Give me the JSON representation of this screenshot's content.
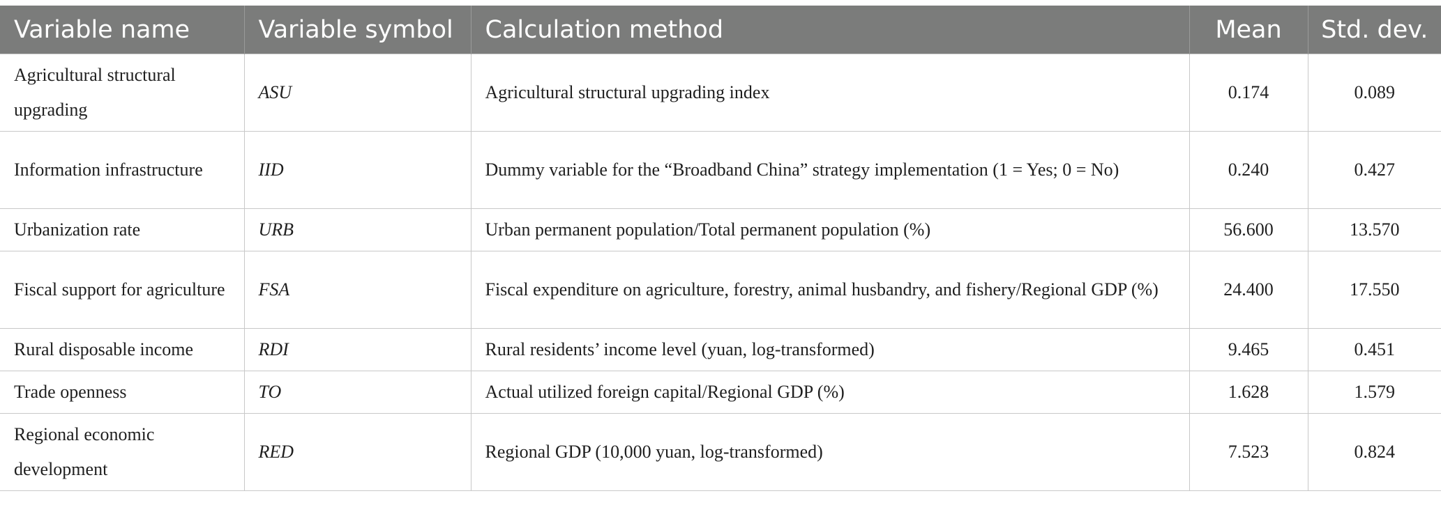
{
  "table": {
    "headers": {
      "name": "Variable name",
      "symbol": "Variable symbol",
      "method": "Calculation method",
      "mean": "Mean",
      "sd": "Std. dev."
    },
    "rows": [
      {
        "name": "Agricultural structural upgrading",
        "symbol": "ASU",
        "method": "Agricultural structural upgrading index",
        "mean": "0.174",
        "sd": "0.089"
      },
      {
        "name": "Information infrastructure",
        "symbol": "IID",
        "method": "Dummy variable for the “Broadband China” strategy implementation (1 = Yes; 0 = No)",
        "mean": "0.240",
        "sd": "0.427"
      },
      {
        "name": "Urbanization rate",
        "symbol": "URB",
        "method": "Urban permanent population/Total permanent population (%)",
        "mean": "56.600",
        "sd": "13.570"
      },
      {
        "name": "Fiscal support for agriculture",
        "symbol": "FSA",
        "method": "Fiscal expenditure on agriculture, forestry, animal husbandry, and fishery/Regional GDP (%)",
        "mean": "24.400",
        "sd": "17.550"
      },
      {
        "name": "Rural disposable income",
        "symbol": "RDI",
        "method": "Rural residents’ income level (yuan, log-transformed)",
        "mean": "9.465",
        "sd": "0.451"
      },
      {
        "name": "Trade openness",
        "symbol": "TO",
        "method": "Actual utilized foreign capital/Regional GDP (%)",
        "mean": "1.628",
        "sd": "1.579"
      },
      {
        "name": "Regional economic development",
        "symbol": "RED",
        "method": "Regional GDP (10,000 yuan, log-transformed)",
        "mean": "7.523",
        "sd": "0.824"
      }
    ]
  }
}
